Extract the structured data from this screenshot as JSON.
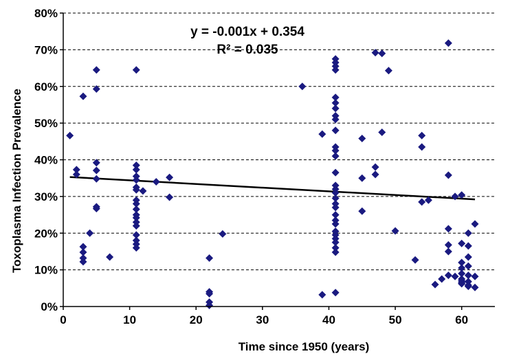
{
  "chart_data": {
    "type": "scatter",
    "xlabel": "Time since 1950 (years)",
    "ylabel": "Toxoplasma Infection Prevalence",
    "xlim": [
      0,
      65
    ],
    "ylim": [
      0,
      0.8
    ],
    "x_ticks": [
      0,
      10,
      20,
      30,
      40,
      50,
      60
    ],
    "y_ticks": [
      0,
      0.1,
      0.2,
      0.3,
      0.4,
      0.5,
      0.6,
      0.7,
      0.8
    ],
    "y_tick_labels": [
      "0%",
      "10%",
      "20%",
      "30%",
      "40%",
      "50%",
      "60%",
      "70%",
      "80%"
    ],
    "grid": "horizontal dashed",
    "marker": "diamond",
    "marker_color": "#1a1a80",
    "trendline": {
      "slope": -0.001,
      "intercept": 0.354,
      "equation": "y = -0.001x + 0.354",
      "r_squared": "R² = 0.035",
      "color": "#000000"
    },
    "points": [
      [
        1,
        0.466
      ],
      [
        2,
        0.373
      ],
      [
        2,
        0.36
      ],
      [
        3,
        0.573
      ],
      [
        3,
        0.163
      ],
      [
        3,
        0.148
      ],
      [
        3,
        0.132
      ],
      [
        3,
        0.122
      ],
      [
        4,
        0.2
      ],
      [
        5,
        0.645
      ],
      [
        5,
        0.593
      ],
      [
        5,
        0.392
      ],
      [
        5,
        0.371
      ],
      [
        5,
        0.348
      ],
      [
        5,
        0.272
      ],
      [
        5,
        0.267
      ],
      [
        7,
        0.135
      ],
      [
        11,
        0.645
      ],
      [
        11,
        0.385
      ],
      [
        11,
        0.373
      ],
      [
        11,
        0.355
      ],
      [
        11,
        0.345
      ],
      [
        11,
        0.325
      ],
      [
        11,
        0.318
      ],
      [
        11,
        0.29
      ],
      [
        11,
        0.28
      ],
      [
        11,
        0.265
      ],
      [
        11,
        0.25
      ],
      [
        11,
        0.242
      ],
      [
        11,
        0.23
      ],
      [
        11,
        0.22
      ],
      [
        11,
        0.195
      ],
      [
        11,
        0.18
      ],
      [
        11,
        0.17
      ],
      [
        11,
        0.16
      ],
      [
        12,
        0.315
      ],
      [
        14,
        0.34
      ],
      [
        16,
        0.352
      ],
      [
        16,
        0.298
      ],
      [
        22,
        0.132
      ],
      [
        22,
        0.04
      ],
      [
        22,
        0.035
      ],
      [
        22,
        0.012
      ],
      [
        22,
        0.003
      ],
      [
        24,
        0.198
      ],
      [
        36,
        0.6
      ],
      [
        39,
        0.47
      ],
      [
        39,
        0.032
      ],
      [
        41,
        0.675
      ],
      [
        41,
        0.665
      ],
      [
        41,
        0.655
      ],
      [
        41,
        0.645
      ],
      [
        41,
        0.57
      ],
      [
        41,
        0.555
      ],
      [
        41,
        0.54
      ],
      [
        41,
        0.52
      ],
      [
        41,
        0.51
      ],
      [
        41,
        0.48
      ],
      [
        41,
        0.435
      ],
      [
        41,
        0.425
      ],
      [
        41,
        0.41
      ],
      [
        41,
        0.365
      ],
      [
        41,
        0.33
      ],
      [
        41,
        0.32
      ],
      [
        41,
        0.31
      ],
      [
        41,
        0.295
      ],
      [
        41,
        0.28
      ],
      [
        41,
        0.27
      ],
      [
        41,
        0.25
      ],
      [
        41,
        0.235
      ],
      [
        41,
        0.225
      ],
      [
        41,
        0.205
      ],
      [
        41,
        0.195
      ],
      [
        41,
        0.185
      ],
      [
        41,
        0.175
      ],
      [
        41,
        0.16
      ],
      [
        41,
        0.148
      ],
      [
        41,
        0.038
      ],
      [
        45,
        0.458
      ],
      [
        45,
        0.35
      ],
      [
        45,
        0.26
      ],
      [
        47,
        0.692
      ],
      [
        47,
        0.38
      ],
      [
        47,
        0.36
      ],
      [
        48,
        0.69
      ],
      [
        48,
        0.475
      ],
      [
        49,
        0.643
      ],
      [
        50,
        0.206
      ],
      [
        53,
        0.127
      ],
      [
        54,
        0.466
      ],
      [
        54,
        0.435
      ],
      [
        54,
        0.285
      ],
      [
        55,
        0.29
      ],
      [
        56,
        0.06
      ],
      [
        57,
        0.075
      ],
      [
        58,
        0.718
      ],
      [
        58,
        0.358
      ],
      [
        58,
        0.212
      ],
      [
        58,
        0.168
      ],
      [
        58,
        0.15
      ],
      [
        58,
        0.085
      ],
      [
        59,
        0.3
      ],
      [
        59,
        0.082
      ],
      [
        60,
        0.304
      ],
      [
        60,
        0.172
      ],
      [
        60,
        0.12
      ],
      [
        60,
        0.105
      ],
      [
        60,
        0.09
      ],
      [
        60,
        0.075
      ],
      [
        60,
        0.07
      ],
      [
        60,
        0.065
      ],
      [
        60,
        0.062
      ],
      [
        61,
        0.2
      ],
      [
        61,
        0.165
      ],
      [
        61,
        0.135
      ],
      [
        61,
        0.11
      ],
      [
        61,
        0.085
      ],
      [
        61,
        0.068
      ],
      [
        61,
        0.058
      ],
      [
        61,
        0.055
      ],
      [
        62,
        0.225
      ],
      [
        62,
        0.082
      ],
      [
        62,
        0.052
      ]
    ]
  }
}
